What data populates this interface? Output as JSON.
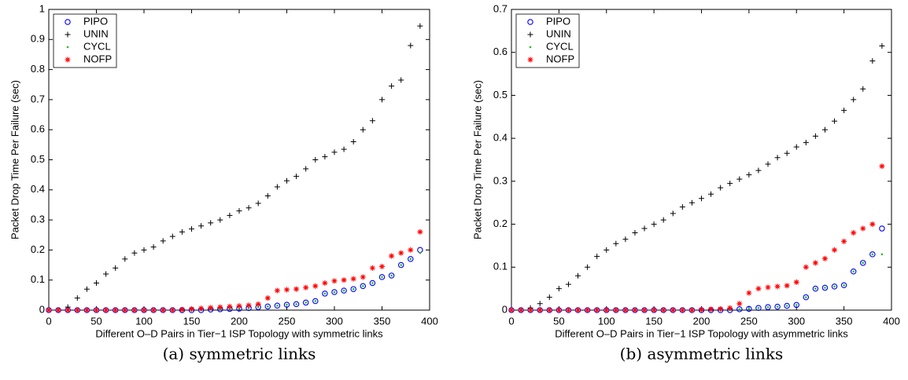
{
  "chart_data": [
    {
      "type": "scatter",
      "caption": "(a) symmetric links",
      "xlabel": "Different O–D Pairs in Tier−1 ISP Topology with symmetric links",
      "ylabel": "Packet Drop Time Per Failure (sec)",
      "xlim": [
        0,
        400
      ],
      "xticks": [
        0,
        50,
        100,
        150,
        200,
        250,
        300,
        350,
        400
      ],
      "ylim": [
        0,
        1
      ],
      "yticks": [
        0,
        0.1,
        0.2,
        0.3,
        0.4,
        0.5,
        0.6,
        0.7,
        0.8,
        0.9,
        1
      ],
      "legend": "upper-left",
      "x": [
        0,
        10,
        20,
        30,
        40,
        50,
        60,
        70,
        80,
        90,
        100,
        110,
        120,
        130,
        140,
        150,
        160,
        170,
        180,
        190,
        200,
        210,
        220,
        230,
        240,
        250,
        260,
        270,
        280,
        290,
        300,
        310,
        320,
        330,
        340,
        350,
        360,
        370,
        380,
        390
      ],
      "series": [
        {
          "name": "PIPO",
          "color": "#0000ff",
          "marker": "o",
          "values": [
            0,
            0,
            0,
            0,
            0,
            0,
            0,
            0,
            0,
            0,
            0,
            0,
            0,
            0,
            0,
            0,
            0,
            0.002,
            0.003,
            0.004,
            0.005,
            0.007,
            0.01,
            0.012,
            0.015,
            0.018,
            0.02,
            0.025,
            0.03,
            0.055,
            0.06,
            0.065,
            0.07,
            0.08,
            0.09,
            0.11,
            0.115,
            0.15,
            0.17,
            0.2
          ]
        },
        {
          "name": "UNIN",
          "color": "#000000",
          "marker": "+",
          "values": [
            0,
            0,
            0.01,
            0.04,
            0.07,
            0.09,
            0.12,
            0.14,
            0.17,
            0.19,
            0.2,
            0.21,
            0.23,
            0.245,
            0.26,
            0.27,
            0.28,
            0.29,
            0.3,
            0.315,
            0.33,
            0.34,
            0.355,
            0.38,
            0.41,
            0.43,
            0.445,
            0.47,
            0.5,
            0.51,
            0.525,
            0.535,
            0.56,
            0.6,
            0.63,
            0.7,
            0.745,
            0.765,
            0.88,
            0.945
          ]
        },
        {
          "name": "CYCL",
          "color": "#22bb22",
          "marker": ".",
          "values": [
            0,
            0,
            0,
            0,
            0,
            0,
            0,
            0,
            0,
            0,
            0,
            0,
            0,
            0,
            0,
            0,
            0,
            0.002,
            0.003,
            0.004,
            0.005,
            0.007,
            0.01,
            0.012,
            0.015,
            0.018,
            0.02,
            0.025,
            0.03,
            0.055,
            0.06,
            0.065,
            0.07,
            0.08,
            0.09,
            0.11,
            0.115,
            0.15,
            0.17,
            0.19
          ]
        },
        {
          "name": "NOFP",
          "color": "#ff0000",
          "marker": "*",
          "values": [
            0,
            0,
            0,
            0,
            0,
            0,
            0,
            0,
            0,
            0,
            0,
            0,
            0,
            0,
            0.002,
            0.004,
            0.006,
            0.008,
            0.01,
            0.012,
            0.014,
            0.016,
            0.02,
            0.04,
            0.065,
            0.068,
            0.07,
            0.075,
            0.08,
            0.09,
            0.097,
            0.1,
            0.104,
            0.11,
            0.14,
            0.145,
            0.18,
            0.19,
            0.2,
            0.26
          ]
        }
      ]
    },
    {
      "type": "scatter",
      "caption": "(b) asymmetric links",
      "xlabel": "Different O–D Pairs in Tier−1 ISP Topology with asymmetric links",
      "ylabel": "Packet Drop Time Per Failure (sec)",
      "xlim": [
        0,
        400
      ],
      "xticks": [
        0,
        50,
        100,
        150,
        200,
        250,
        300,
        350,
        400
      ],
      "ylim": [
        0,
        0.7
      ],
      "yticks": [
        0,
        0.1,
        0.2,
        0.3,
        0.4,
        0.5,
        0.6,
        0.7
      ],
      "legend": "upper-left",
      "x": [
        0,
        10,
        20,
        30,
        40,
        50,
        60,
        70,
        80,
        90,
        100,
        110,
        120,
        130,
        140,
        150,
        160,
        170,
        180,
        190,
        200,
        210,
        220,
        230,
        240,
        250,
        260,
        270,
        280,
        290,
        300,
        310,
        320,
        330,
        340,
        350,
        360,
        370,
        380,
        390
      ],
      "series": [
        {
          "name": "PIPO",
          "color": "#0000ff",
          "marker": "o",
          "values": [
            0,
            0,
            0,
            0,
            0,
            0,
            0,
            0,
            0,
            0,
            0,
            0,
            0,
            0,
            0,
            0,
            0,
            0,
            0,
            0,
            0,
            0,
            0,
            0,
            0.002,
            0.003,
            0.005,
            0.007,
            0.008,
            0.01,
            0.012,
            0.03,
            0.05,
            0.052,
            0.055,
            0.058,
            0.09,
            0.11,
            0.13,
            0.19
          ]
        },
        {
          "name": "UNIN",
          "color": "#000000",
          "marker": "+",
          "values": [
            0,
            0,
            0.005,
            0.015,
            0.03,
            0.05,
            0.06,
            0.08,
            0.1,
            0.125,
            0.14,
            0.155,
            0.165,
            0.18,
            0.19,
            0.2,
            0.21,
            0.225,
            0.24,
            0.25,
            0.26,
            0.27,
            0.285,
            0.295,
            0.305,
            0.315,
            0.325,
            0.34,
            0.355,
            0.365,
            0.38,
            0.39,
            0.405,
            0.42,
            0.44,
            0.465,
            0.49,
            0.515,
            0.58,
            0.615
          ]
        },
        {
          "name": "CYCL",
          "color": "#22bb22",
          "marker": ".",
          "values": [
            0,
            0,
            0,
            0,
            0,
            0,
            0,
            0,
            0,
            0,
            0,
            0,
            0,
            0,
            0,
            0,
            0,
            0,
            0,
            0,
            0,
            0,
            0,
            0,
            0.002,
            0.003,
            0.005,
            0.007,
            0.008,
            0.01,
            0.012,
            0.03,
            0.05,
            0.052,
            0.055,
            0.058,
            0.09,
            0.11,
            0.13,
            0.13
          ]
        },
        {
          "name": "NOFP",
          "color": "#ff0000",
          "marker": "*",
          "values": [
            0,
            0,
            0,
            0,
            0,
            0,
            0,
            0,
            0,
            0,
            0,
            0,
            0,
            0,
            0,
            0,
            0,
            0,
            0,
            0,
            0.001,
            0.002,
            0.003,
            0.005,
            0.015,
            0.04,
            0.05,
            0.053,
            0.055,
            0.057,
            0.065,
            0.1,
            0.11,
            0.12,
            0.14,
            0.16,
            0.18,
            0.19,
            0.2,
            0.335
          ]
        }
      ]
    }
  ]
}
